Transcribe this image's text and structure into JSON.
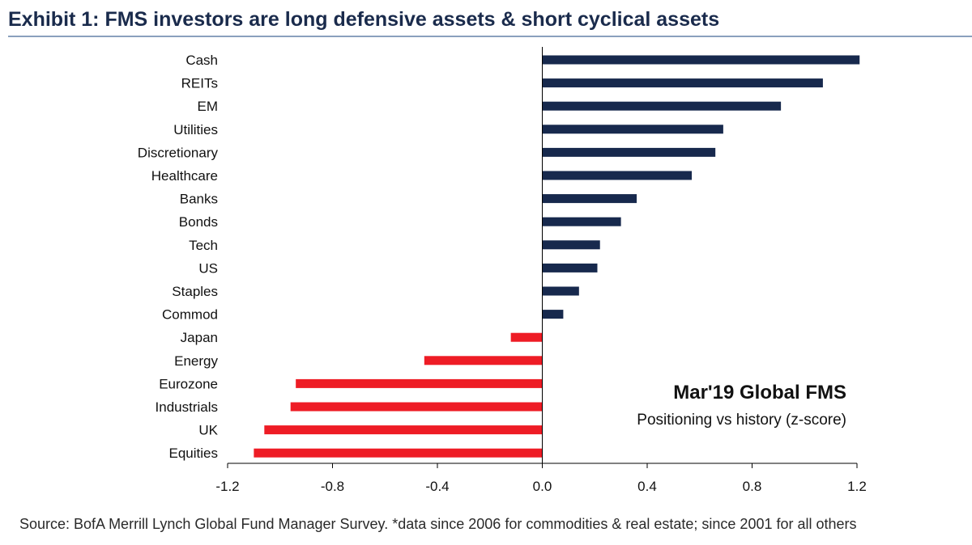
{
  "title": "Exhibit 1: FMS investors are long defensive assets & short cyclical assets",
  "source": "Source:   BofA Merrill Lynch Global Fund Manager Survey. *data since 2006 for commodities & real estate; since 2001  for all others",
  "colors": {
    "positive": "#17294d",
    "negative": "#ee1c25",
    "axis": "#000000"
  },
  "chart_data": {
    "type": "bar",
    "orientation": "horizontal",
    "categories": [
      "Cash",
      "REITs",
      "EM",
      "Utilities",
      "Discretionary",
      "Healthcare",
      "Banks",
      "Bonds",
      "Tech",
      "US",
      "Staples",
      "Commod",
      "Japan",
      "Energy",
      "Eurozone",
      "Industrials",
      "UK",
      "Equities"
    ],
    "values": [
      1.21,
      1.07,
      0.91,
      0.69,
      0.66,
      0.57,
      0.36,
      0.3,
      0.22,
      0.21,
      0.14,
      0.08,
      -0.12,
      -0.45,
      -0.94,
      -0.96,
      -1.06,
      -1.1
    ],
    "xlim": [
      -1.2,
      1.2
    ],
    "xticks": [
      "-1.2",
      "-0.8",
      "-0.4",
      "0.0",
      "0.4",
      "0.8",
      "1.2"
    ],
    "xtick_values": [
      -1.2,
      -0.8,
      -0.4,
      0.0,
      0.4,
      0.8,
      1.2
    ],
    "annotation_title": "Mar'19 Global FMS",
    "annotation_subtitle": "Positioning vs history (z-score)",
    "grid": false,
    "legend": "none"
  }
}
